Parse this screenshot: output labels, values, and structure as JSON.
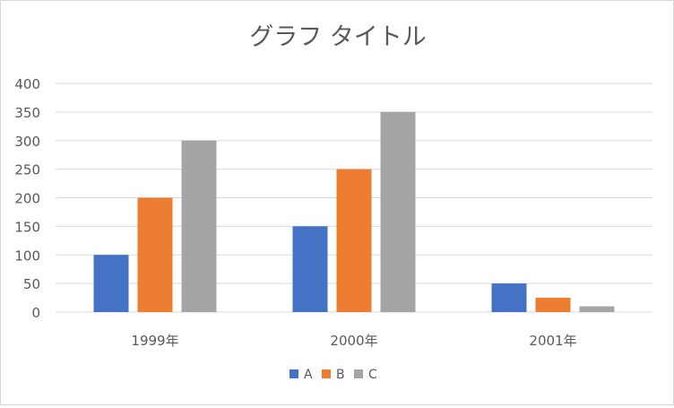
{
  "chart_data": {
    "type": "bar",
    "title": "グラフ タイトル",
    "xlabel": "",
    "ylabel": "",
    "categories": [
      "1999年",
      "2000年",
      "2001年"
    ],
    "series": [
      {
        "name": "A",
        "color": "#4472C4",
        "values": [
          100,
          150,
          50
        ]
      },
      {
        "name": "B",
        "color": "#ED7D31",
        "values": [
          200,
          250,
          25
        ]
      },
      {
        "name": "C",
        "color": "#A5A5A5",
        "values": [
          300,
          350,
          10
        ]
      }
    ],
    "ylim": [
      0,
      400
    ],
    "yticks": [
      0,
      50,
      100,
      150,
      200,
      250,
      300,
      350,
      400
    ],
    "grid": true,
    "legend_position": "bottom"
  }
}
